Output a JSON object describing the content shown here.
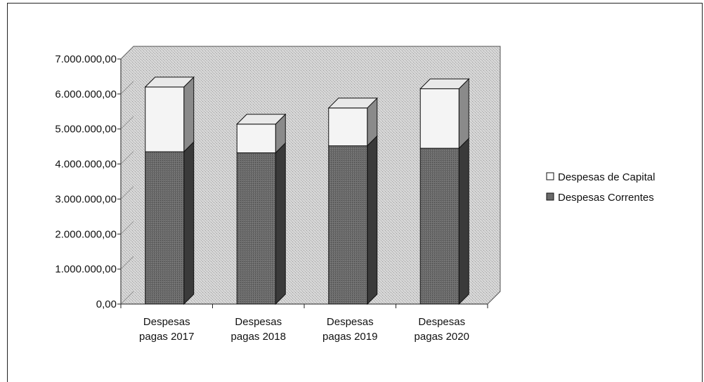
{
  "chart_data": {
    "type": "bar",
    "stacked": true,
    "three_d": true,
    "categories": [
      [
        "Despesas",
        "pagas 2017"
      ],
      [
        "Despesas",
        "pagas 2018"
      ],
      [
        "Despesas",
        "pagas 2019"
      ],
      [
        "Despesas",
        "pagas 2020"
      ]
    ],
    "series": [
      {
        "name": "Despesas Correntes",
        "values": [
          4350000,
          4320000,
          4520000,
          4450000
        ],
        "color": "#6a6a6a"
      },
      {
        "name": "Despesas de Capital",
        "values": [
          1850000,
          820000,
          1080000,
          1700000
        ],
        "color": "#f4f4f4"
      }
    ],
    "ylim": [
      0,
      7000000
    ],
    "yticks": [
      {
        "value": 0,
        "label": "0,00"
      },
      {
        "value": 1000000,
        "label": "1.000.000,00"
      },
      {
        "value": 2000000,
        "label": "2.000.000,00"
      },
      {
        "value": 3000000,
        "label": "3.000.000,00"
      },
      {
        "value": 4000000,
        "label": "4.000.000,00"
      },
      {
        "value": 5000000,
        "label": "5.000.000,00"
      },
      {
        "value": 6000000,
        "label": "6.000.000,00"
      },
      {
        "value": 7000000,
        "label": "7.000.000,00"
      }
    ],
    "legend": {
      "position": "right",
      "order": [
        "Despesas de Capital",
        "Despesas Correntes"
      ]
    },
    "plot_background": "#c9c9c9",
    "grid": false
  }
}
